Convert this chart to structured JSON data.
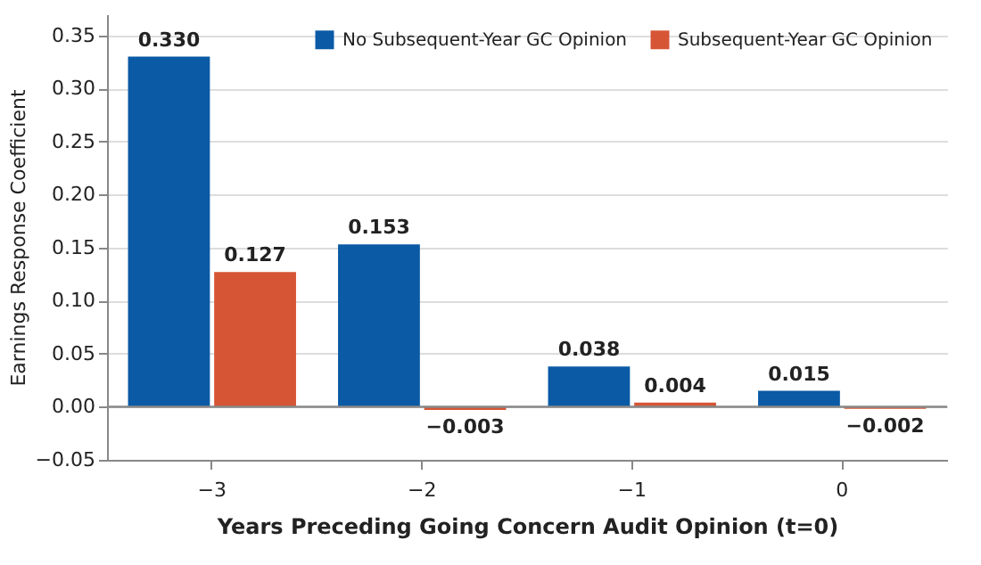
{
  "chart_data": {
    "type": "bar",
    "xlabel": "Years Preceding Going Concern Audit Opinion (t=0)",
    "ylabel": "Earnings Response Coefficient",
    "categories": [
      "−3",
      "−2",
      "−1",
      "0"
    ],
    "series": [
      {
        "name": "No Subsequent-Year GC Opinion",
        "color": "#0a5aa5",
        "values": [
          0.33,
          0.153,
          0.038,
          0.015
        ],
        "value_labels": [
          "0.330",
          "0.153",
          "0.038",
          "0.015"
        ]
      },
      {
        "name": "Subsequent-Year GC Opinion",
        "color": "#d65535",
        "values": [
          0.127,
          -0.003,
          0.004,
          -0.002
        ],
        "value_labels": [
          "0.127",
          "−0.003",
          "0.004",
          "−0.002"
        ]
      }
    ],
    "ylim": [
      -0.05,
      0.37
    ],
    "yticks": [
      {
        "value": -0.05,
        "label": "−0.05"
      },
      {
        "value": 0,
        "label": "0.00"
      },
      {
        "value": 0.05,
        "label": "0.05"
      },
      {
        "value": 0.1,
        "label": "0.10"
      },
      {
        "value": 0.15,
        "label": "0.15"
      },
      {
        "value": 0.2,
        "label": "0.20"
      },
      {
        "value": 0.25,
        "label": "0.25"
      },
      {
        "value": 0.3,
        "label": "0.30"
      },
      {
        "value": 0.35,
        "label": "0.35"
      }
    ],
    "ref_lines": [
      {
        "axis": "y",
        "value": 0,
        "color": "#888888"
      }
    ],
    "grid": "y",
    "legend": "top right"
  }
}
